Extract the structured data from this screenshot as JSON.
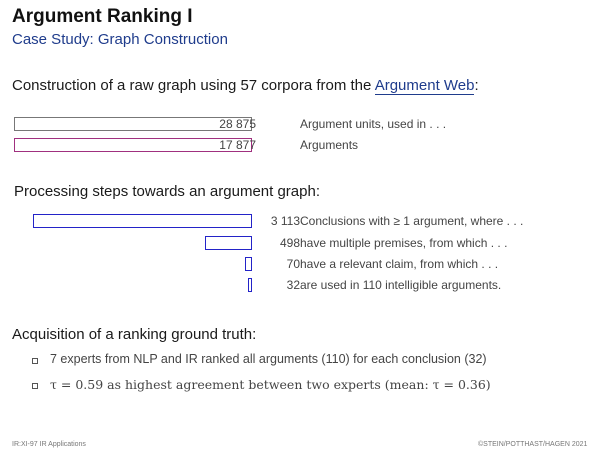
{
  "title": "Argument Ranking I",
  "subtitle": "Case Study: Graph Construction",
  "intro": {
    "prefix": "Construction of a raw graph using 57 corpora from the",
    "link": "Argument Web",
    "suffix": ":"
  },
  "raw_graph": [
    {
      "count": "28 875",
      "label": "Argument units, used in . . .",
      "color": "#777777"
    },
    {
      "count": "17 877",
      "label": "Arguments",
      "color": "#a0307f"
    }
  ],
  "processing": {
    "heading": "Processing steps towards an argument graph:",
    "color": "#2323c8",
    "steps": [
      {
        "count": "3 113",
        "label": "Conclusions with ≥ 1 argument, where . . ."
      },
      {
        "count": "498",
        "label": "have multiple premises, from which . . ."
      },
      {
        "count": "70",
        "label": "have a relevant claim, from which . . ."
      },
      {
        "count": "32",
        "label": "are used in 110 intelligible arguments."
      }
    ]
  },
  "acquisition": {
    "heading": "Acquisition of a ranking ground truth:",
    "bullets": [
      "7 experts from NLP and IR ranked all arguments (110) for each conclusion (32)",
      "τ = 0.59 as highest agreement between two experts   (mean: τ = 0.36)"
    ]
  },
  "footer": {
    "left": "IR:XI-97   IR Applications",
    "right": "©STEIN/POTTHAST/HAGEN 2021"
  }
}
